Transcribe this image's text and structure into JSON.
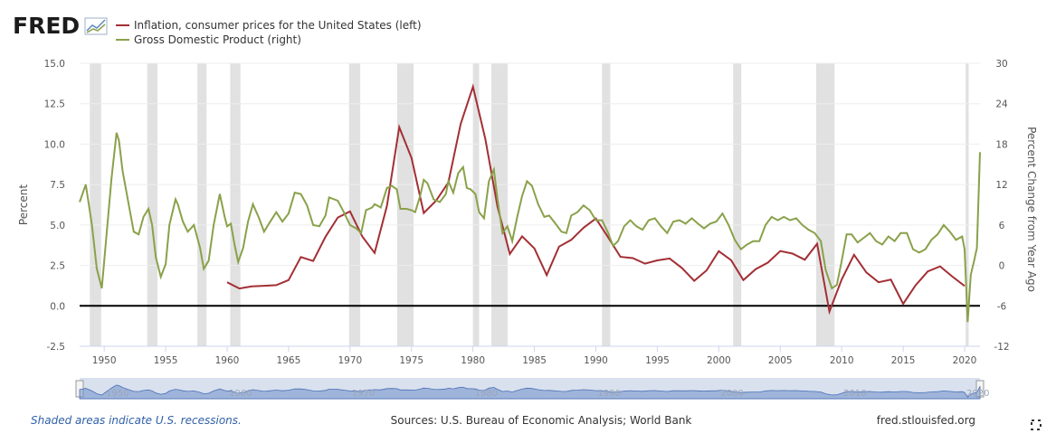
{
  "chart_data": {
    "type": "line",
    "logo": "FRED",
    "ylabel": "Percent",
    "y2label": "Percent Change from Year Ago",
    "xlim": [
      1948,
      2021.25
    ],
    "xticks": [
      1950,
      1955,
      1960,
      1965,
      1970,
      1975,
      1980,
      1985,
      1990,
      1995,
      2000,
      2005,
      2010,
      2015,
      2020
    ],
    "ylim": [
      -2.5,
      15
    ],
    "yticks": [
      {
        "value": 15,
        "label": "15.0"
      },
      12.5,
      {
        "value": 10,
        "label": "10.0"
      },
      7.5,
      {
        "value": 5,
        "label": "5.0"
      },
      2.5,
      {
        "value": 0,
        "label": "0.0"
      },
      -2.5
    ],
    "y2lim": [
      -12,
      30
    ],
    "y2ticks": [
      30,
      24,
      18,
      12,
      6,
      0,
      -6,
      -12
    ],
    "zero_line": 0,
    "grid": true,
    "recessions": [
      [
        1948.83,
        1949.75
      ],
      [
        1953.5,
        1954.33
      ],
      [
        1957.58,
        1958.33
      ],
      [
        1960.25,
        1961.08
      ],
      [
        1969.92,
        1970.83
      ],
      [
        1973.83,
        1975.17
      ],
      [
        1980.0,
        1980.5
      ],
      [
        1981.5,
        1982.83
      ],
      [
        1990.5,
        1991.17
      ],
      [
        2001.17,
        2001.83
      ],
      [
        2007.92,
        2009.42
      ],
      [
        2020.08,
        2020.33
      ]
    ],
    "series": [
      {
        "name": "Inflation, consumer prices for the United States (left)",
        "color": "#a32f35",
        "axis": "y",
        "x": [
          1960,
          1961,
          1962,
          1963,
          1964,
          1965,
          1966,
          1967,
          1968,
          1969,
          1970,
          1971,
          1972,
          1973,
          1974,
          1975,
          1976,
          1977,
          1978,
          1979,
          1980,
          1981,
          1982,
          1983,
          1984,
          1985,
          1986,
          1987,
          1988,
          1989,
          1990,
          1991,
          1992,
          1993,
          1994,
          1995,
          1996,
          1997,
          1998,
          1999,
          2000,
          2001,
          2002,
          2003,
          2004,
          2005,
          2006,
          2007,
          2008,
          2009,
          2010,
          2011,
          2012,
          2013,
          2014,
          2015,
          2016,
          2017,
          2018,
          2019,
          2020
        ],
        "values": [
          1.46,
          1.07,
          1.2,
          1.24,
          1.28,
          1.59,
          3.02,
          2.77,
          4.27,
          5.46,
          5.84,
          4.29,
          3.27,
          6.18,
          11.05,
          9.14,
          5.74,
          6.5,
          7.63,
          11.25,
          13.55,
          10.33,
          6.13,
          3.21,
          4.3,
          3.55,
          1.9,
          3.66,
          4.08,
          4.83,
          5.4,
          4.23,
          3.03,
          2.95,
          2.61,
          2.81,
          2.93,
          2.34,
          1.55,
          2.19,
          3.38,
          2.83,
          1.59,
          2.27,
          2.68,
          3.39,
          3.23,
          2.85,
          3.84,
          -0.36,
          1.64,
          3.16,
          2.07,
          1.46,
          1.62,
          0.12,
          1.26,
          2.13,
          2.44,
          1.81,
          1.23
        ]
      },
      {
        "name": "Gross Domestic Product (right)",
        "color": "#8aa14a",
        "axis": "y2",
        "x": [
          1948.0,
          1948.5,
          1949.0,
          1949.4,
          1949.8,
          1950.2,
          1950.6,
          1951.0,
          1951.2,
          1951.5,
          1952.0,
          1952.4,
          1952.8,
          1953.2,
          1953.6,
          1953.9,
          1954.2,
          1954.6,
          1955.0,
          1955.3,
          1955.8,
          1956.0,
          1956.4,
          1956.8,
          1957.3,
          1957.8,
          1958.1,
          1958.5,
          1958.9,
          1959.4,
          1959.8,
          1960.0,
          1960.3,
          1960.6,
          1960.9,
          1961.3,
          1961.7,
          1962.1,
          1962.6,
          1963.0,
          1963.4,
          1964.0,
          1964.5,
          1965.0,
          1965.5,
          1966.0,
          1966.5,
          1967.0,
          1967.5,
          1968.0,
          1968.3,
          1969.0,
          1969.5,
          1970.0,
          1970.5,
          1970.9,
          1971.3,
          1971.8,
          1972.0,
          1972.5,
          1973.0,
          1973.4,
          1973.8,
          1974.1,
          1974.6,
          1975.0,
          1975.3,
          1975.7,
          1976.0,
          1976.3,
          1976.8,
          1977.3,
          1977.8,
          1978.0,
          1978.4,
          1978.8,
          1979.2,
          1979.5,
          1979.8,
          1980.2,
          1980.5,
          1980.9,
          1981.3,
          1981.7,
          1982.0,
          1982.4,
          1982.8,
          1983.2,
          1983.6,
          1984.0,
          1984.4,
          1984.8,
          1985.3,
          1985.8,
          1986.2,
          1986.8,
          1987.2,
          1987.6,
          1988.0,
          1988.5,
          1989.0,
          1989.5,
          1990.0,
          1990.5,
          1991.0,
          1991.4,
          1991.8,
          1992.3,
          1992.8,
          1993.3,
          1993.8,
          1994.3,
          1994.8,
          1995.3,
          1995.8,
          1996.3,
          1996.8,
          1997.3,
          1997.8,
          1998.3,
          1998.8,
          1999.3,
          1999.8,
          2000.3,
          2000.8,
          2001.3,
          2001.8,
          2002.3,
          2002.8,
          2003.3,
          2003.8,
          2004.3,
          2004.8,
          2005.3,
          2005.8,
          2006.3,
          2006.8,
          2007.3,
          2007.8,
          2008.3,
          2008.7,
          2009.2,
          2009.6,
          2010.0,
          2010.4,
          2010.8,
          2011.3,
          2011.8,
          2012.3,
          2012.8,
          2013.3,
          2013.8,
          2014.3,
          2014.8,
          2015.3,
          2015.8,
          2016.3,
          2016.8,
          2017.3,
          2017.8,
          2018.3,
          2018.8,
          2019.3,
          2019.8,
          2020.0,
          2020.25,
          2020.5,
          2020.75,
          2021.0,
          2021.25
        ],
        "values": [
          9.4,
          12,
          6,
          -0.5,
          -3.4,
          4.8,
          13,
          19.7,
          18.5,
          14,
          9,
          5,
          4.6,
          7.2,
          8.4,
          6,
          1.2,
          -1.7,
          0.2,
          6,
          9.8,
          9,
          6.5,
          5,
          6,
          2.6,
          -0.5,
          0.7,
          6,
          10.6,
          7.2,
          5.8,
          6.2,
          3.1,
          0.5,
          2.6,
          6.5,
          9.1,
          7,
          5,
          6.2,
          7.9,
          6.5,
          7.7,
          10.8,
          10.6,
          8.9,
          6,
          5.8,
          7.4,
          10.1,
          9.6,
          7.9,
          6,
          5.5,
          4.8,
          8.2,
          8.6,
          9.1,
          8.6,
          11.5,
          11.8,
          11.3,
          8.4,
          8.4,
          8.2,
          7.9,
          10.3,
          12.7,
          12.2,
          9.8,
          9.4,
          10.6,
          12.5,
          10.8,
          13.7,
          14.6,
          11.5,
          11.3,
          10.6,
          7.9,
          7,
          12.5,
          14.2,
          9.8,
          4.8,
          5.8,
          3.6,
          7.2,
          10.3,
          12.5,
          11.8,
          9.1,
          7.2,
          7.4,
          6,
          5,
          4.8,
          7.4,
          7.9,
          8.9,
          8.2,
          6.7,
          6.7,
          4.8,
          2.9,
          3.6,
          5.8,
          6.7,
          5.8,
          5.3,
          6.7,
          7,
          5.8,
          4.8,
          6.5,
          6.7,
          6.2,
          7,
          6.2,
          5.5,
          6.2,
          6.5,
          7.7,
          6,
          3.8,
          2.4,
          3.1,
          3.6,
          3.6,
          6,
          7.2,
          6.7,
          7.2,
          6.7,
          7,
          6,
          5.3,
          4.8,
          3.6,
          -0.7,
          -3.4,
          -2.9,
          0.7,
          4.6,
          4.6,
          3.4,
          4.1,
          4.8,
          3.6,
          3.1,
          4.3,
          3.6,
          4.8,
          4.8,
          2.4,
          1.9,
          2.4,
          3.8,
          4.6,
          6,
          5,
          3.8,
          4.3,
          2.4,
          -8.4,
          -1.4,
          0.5,
          2.6,
          16.8
        ]
      }
    ],
    "navigator_labels": [
      1950,
      1960,
      1970,
      1980,
      1990,
      2000,
      2010,
      2020
    ],
    "note": "Shaded areas indicate U.S. recessions.",
    "source": "Sources: U.S. Bureau of Economic Analysis; World Bank",
    "site": "fred.stlouisfed.org"
  }
}
